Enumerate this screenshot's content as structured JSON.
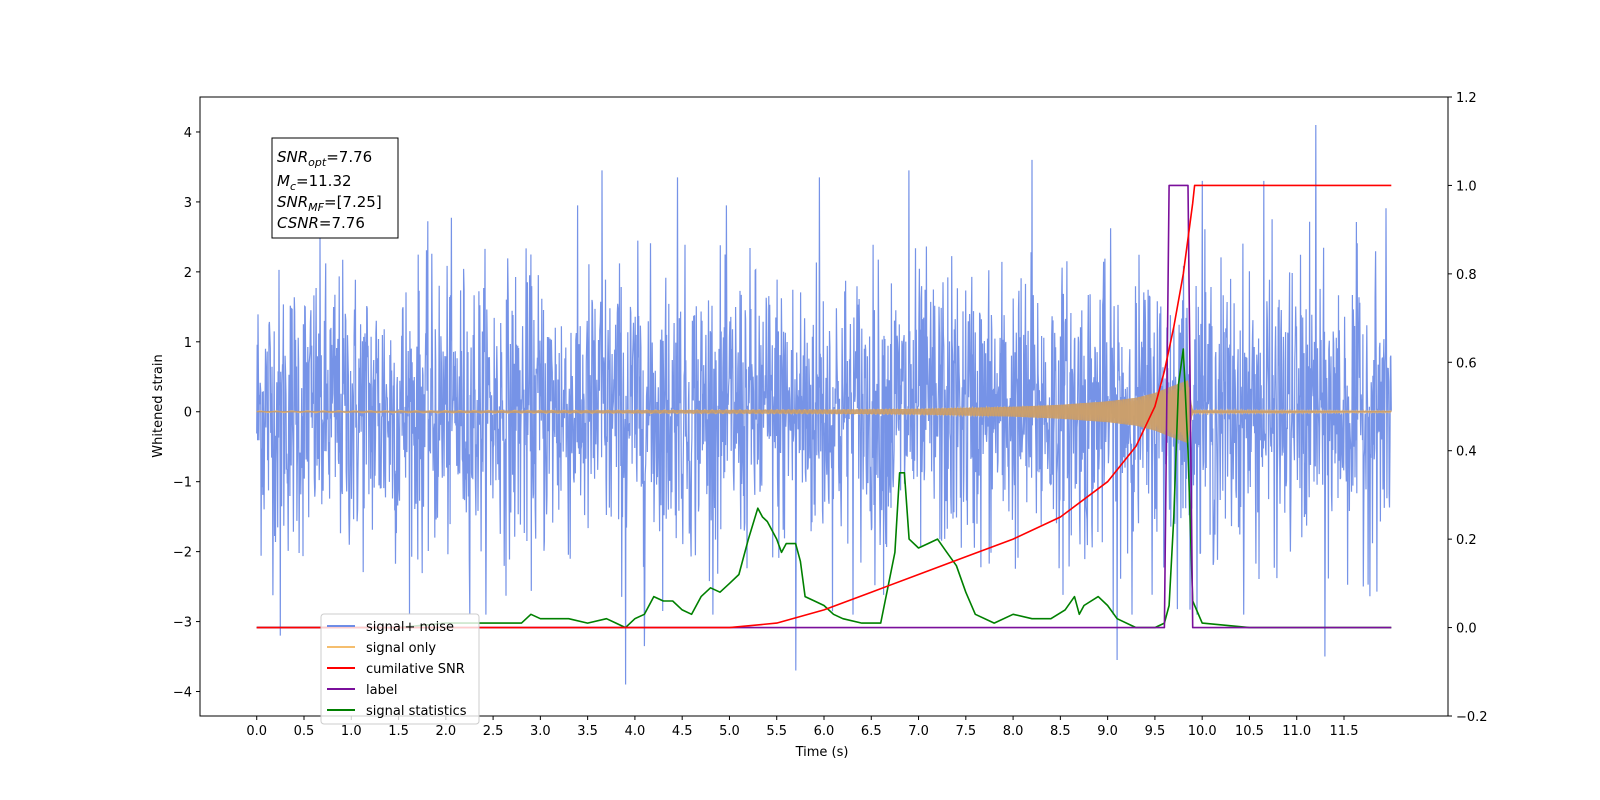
{
  "chart_data": {
    "type": "line",
    "title": "",
    "xlabel": "Time (s)",
    "ylabel": "Whitened strain",
    "xlim": [
      -0.6,
      12.6
    ],
    "ylim": [
      -4.35,
      4.5
    ],
    "ylim_right": [
      -0.2,
      1.2
    ],
    "grid": false,
    "legend_position": "lower-left",
    "x_ticks": [
      "0.0",
      "0.5",
      "1.0",
      "1.5",
      "2.0",
      "2.5",
      "3.0",
      "3.5",
      "4.0",
      "4.5",
      "5.0",
      "5.5",
      "6.0",
      "6.5",
      "7.0",
      "7.5",
      "8.0",
      "8.5",
      "9.0",
      "9.5",
      "10.0",
      "10.5",
      "11.0",
      "11.5"
    ],
    "y_ticks_left": [
      "4",
      "3",
      "2",
      "1",
      "0",
      "−1",
      "−2",
      "−3",
      "−4"
    ],
    "y_ticks_right": [
      "1.2",
      "1.0",
      "0.8",
      "0.6",
      "0.4",
      "0.2",
      "0.0",
      "−0.2"
    ],
    "annotations": [
      {
        "base": "SNR",
        "sub": "opt",
        "value": "=7.76"
      },
      {
        "base": "M",
        "sub": "c",
        "value": "=11.32"
      },
      {
        "base": "SNR",
        "sub": "MF",
        "value": "=[7.25]"
      },
      {
        "base": "CSNR",
        "sub": "",
        "value": "=7.76"
      }
    ],
    "series": [
      {
        "name": "signal+ noise",
        "axis": "left",
        "color": "#6f8de6",
        "noise_band": {
          "x_start": 0.0,
          "x_end": 12.0,
          "typical_amplitude": 1.0,
          "min": -3.9,
          "max": 4.1
        },
        "peaks": [
          {
            "x": 3.65,
            "y": 3.45
          },
          {
            "x": 4.45,
            "y": 3.35
          },
          {
            "x": 5.95,
            "y": 3.35
          },
          {
            "x": 6.9,
            "y": 3.45
          },
          {
            "x": 8.2,
            "y": 3.6
          },
          {
            "x": 10.0,
            "y": 3.3
          },
          {
            "x": 10.65,
            "y": 3.3
          },
          {
            "x": 11.2,
            "y": 4.1
          },
          {
            "x": 3.9,
            "y": -3.9
          },
          {
            "x": 5.7,
            "y": -3.7
          },
          {
            "x": 9.1,
            "y": -3.55
          },
          {
            "x": 11.3,
            "y": -3.5
          },
          {
            "x": 0.25,
            "y": -3.2
          },
          {
            "x": 4.1,
            "y": -3.35
          }
        ]
      },
      {
        "name": "signal only",
        "axis": "left",
        "color": "#f5be6e",
        "envelope": {
          "x": [
            0.0,
            6.0,
            7.0,
            8.0,
            8.5,
            9.0,
            9.3,
            9.5,
            9.65,
            9.75,
            9.85,
            9.9,
            12.0
          ],
          "amplitude": [
            0.01,
            0.03,
            0.04,
            0.07,
            0.1,
            0.15,
            0.2,
            0.27,
            0.35,
            0.4,
            0.45,
            0.02,
            0.01
          ]
        }
      },
      {
        "name": "cumilative SNR",
        "axis": "right",
        "color": "#ff0000",
        "x": [
          0.0,
          5.0,
          5.5,
          6.0,
          6.5,
          7.0,
          7.5,
          8.0,
          8.5,
          9.0,
          9.3,
          9.5,
          9.6,
          9.7,
          9.8,
          9.85,
          9.9,
          9.92,
          12.0
        ],
        "y": [
          0.0,
          0.0,
          0.01,
          0.04,
          0.08,
          0.12,
          0.16,
          0.2,
          0.25,
          0.33,
          0.41,
          0.5,
          0.58,
          0.68,
          0.8,
          0.88,
          0.96,
          1.0,
          1.0
        ]
      },
      {
        "name": "label",
        "axis": "right",
        "color": "#7a0f9b",
        "x": [
          0.0,
          9.6,
          9.65,
          9.85,
          9.9,
          12.0
        ],
        "y": [
          0.0,
          0.0,
          1.0,
          1.0,
          0.0,
          0.0
        ]
      },
      {
        "name": "signal statistics",
        "axis": "right",
        "color": "#008000",
        "x": [
          0.0,
          1.0,
          1.5,
          2.0,
          2.5,
          2.8,
          2.9,
          3.0,
          3.3,
          3.5,
          3.7,
          3.8,
          3.9,
          4.0,
          4.1,
          4.2,
          4.3,
          4.4,
          4.5,
          4.6,
          4.7,
          4.8,
          4.9,
          5.0,
          5.1,
          5.2,
          5.3,
          5.35,
          5.4,
          5.5,
          5.55,
          5.6,
          5.7,
          5.75,
          5.8,
          5.9,
          6.0,
          6.1,
          6.2,
          6.4,
          6.6,
          6.75,
          6.8,
          6.85,
          6.9,
          7.0,
          7.1,
          7.2,
          7.3,
          7.4,
          7.5,
          7.6,
          7.8,
          8.0,
          8.2,
          8.4,
          8.55,
          8.65,
          8.7,
          8.75,
          8.9,
          9.0,
          9.1,
          9.3,
          9.5,
          9.6,
          9.65,
          9.7,
          9.75,
          9.8,
          9.85,
          9.9,
          10.0,
          10.5,
          12.0
        ],
        "y": [
          0.0,
          0.0,
          0.0,
          0.01,
          0.01,
          0.01,
          0.03,
          0.02,
          0.02,
          0.01,
          0.02,
          0.01,
          0.0,
          0.02,
          0.03,
          0.07,
          0.06,
          0.06,
          0.04,
          0.03,
          0.07,
          0.09,
          0.08,
          0.1,
          0.12,
          0.2,
          0.27,
          0.25,
          0.24,
          0.2,
          0.17,
          0.19,
          0.19,
          0.15,
          0.07,
          0.06,
          0.05,
          0.03,
          0.02,
          0.01,
          0.01,
          0.17,
          0.35,
          0.35,
          0.2,
          0.18,
          0.19,
          0.2,
          0.17,
          0.14,
          0.08,
          0.03,
          0.01,
          0.03,
          0.02,
          0.02,
          0.04,
          0.07,
          0.03,
          0.05,
          0.07,
          0.05,
          0.02,
          0.0,
          0.0,
          0.01,
          0.05,
          0.25,
          0.55,
          0.63,
          0.4,
          0.06,
          0.01,
          0.0,
          0.0
        ]
      }
    ]
  }
}
